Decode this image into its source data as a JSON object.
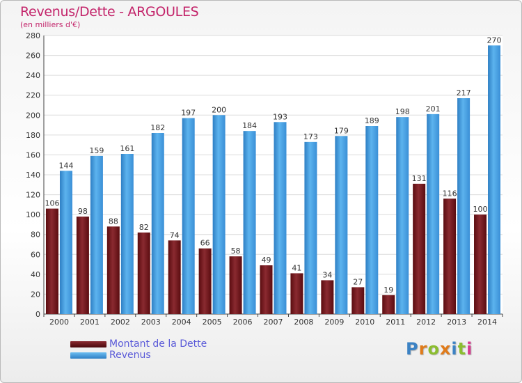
{
  "title": "Revenus/Dette - ARGOULES",
  "subtitle": "(en milliers d'€)",
  "logo": {
    "letters": [
      "P",
      "r",
      "o",
      "x",
      "i",
      "t",
      "i"
    ],
    "colors": [
      "#3b82c4",
      "#e07b1a",
      "#8bbd2f",
      "#e07b1a",
      "#3b82c4",
      "#8bbd2f",
      "#d63b8f"
    ]
  },
  "chart_data": {
    "type": "bar",
    "title": "Revenus/Dette - ARGOULES",
    "ylabel": "",
    "xlabel": "",
    "ylim": [
      0,
      280
    ],
    "yticks": [
      0,
      20,
      40,
      60,
      80,
      100,
      120,
      140,
      160,
      180,
      200,
      220,
      240,
      260,
      280
    ],
    "grid": true,
    "legend": "bottom-left",
    "categories": [
      "2000",
      "2001",
      "2002",
      "2003",
      "2004",
      "2005",
      "2006",
      "2007",
      "2008",
      "2009",
      "2010",
      "2011",
      "2012",
      "2013",
      "2014"
    ],
    "series": [
      {
        "name": "Montant de la Dette",
        "color": "#7a1a1f",
        "values": [
          106,
          98,
          88,
          82,
          74,
          66,
          58,
          49,
          41,
          34,
          27,
          19,
          131,
          116,
          100
        ]
      },
      {
        "name": "Revenus",
        "color": "#4aa3e6",
        "values": [
          144,
          159,
          161,
          182,
          197,
          200,
          184,
          193,
          173,
          179,
          189,
          198,
          201,
          217,
          270
        ]
      }
    ]
  }
}
